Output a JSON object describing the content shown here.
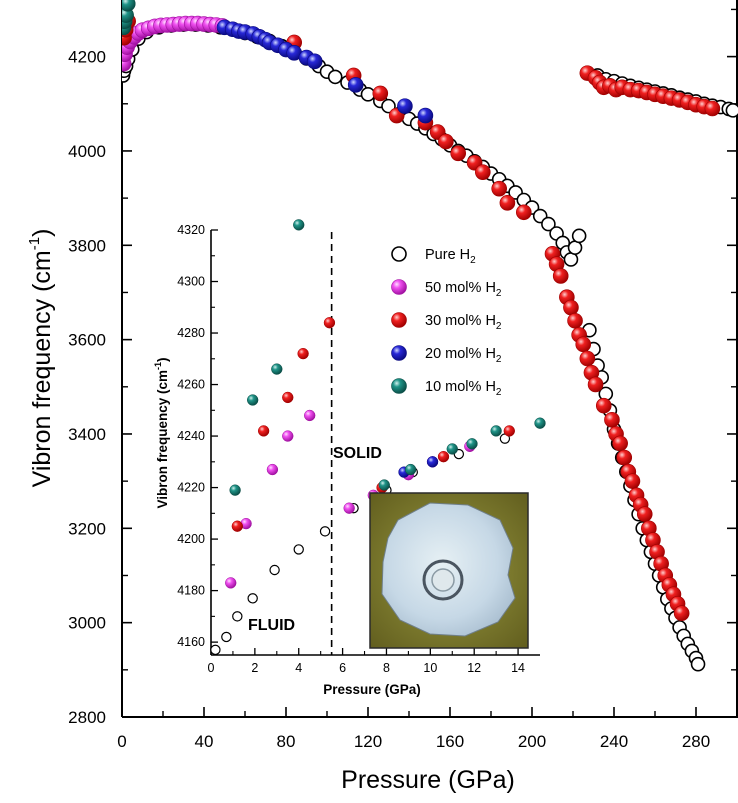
{
  "chart_data": [
    {
      "type": "scatter",
      "title": "",
      "xlabel": "Pressure (GPa)",
      "ylabel": "Vibron frequency (cm-1)",
      "ylabel_main": "Vibron frequency (cm",
      "ylabel_sup": "-1",
      "ylabel_close": ")",
      "xlim": [
        0,
        300
      ],
      "ylim": [
        2800,
        4320
      ],
      "xticks": [
        0,
        40,
        80,
        120,
        160,
        200,
        240,
        280
      ],
      "yticks": [
        2800,
        3000,
        3200,
        3400,
        3600,
        3800,
        4000,
        4200
      ],
      "grid": false,
      "colors": {
        "pure": "#000000",
        "h50": "#ee22ee",
        "h30": "#ee1111",
        "h20": "#1a1acc",
        "h10": "#1a8a80"
      },
      "series": [
        {
          "name": "Pure H2",
          "key": "pure",
          "points": [
            [
              0.5,
              4160
            ],
            [
              1,
              4170
            ],
            [
              2,
              4180
            ],
            [
              3,
              4195
            ],
            [
              5,
              4215
            ],
            [
              8,
              4238
            ],
            [
              12,
              4252
            ],
            [
              18,
              4262
            ],
            [
              24,
              4266
            ],
            [
              30,
              4268
            ],
            [
              36,
              4268
            ],
            [
              42,
              4266
            ],
            [
              48,
              4262
            ],
            [
              54,
              4258
            ],
            [
              60,
              4250
            ],
            [
              66,
              4242
            ],
            [
              72,
              4233
            ],
            [
              78,
              4222
            ],
            [
              84,
              4208
            ],
            [
              90,
              4196
            ],
            [
              96,
              4180
            ],
            [
              100,
              4168
            ],
            [
              104,
              4157
            ],
            [
              110,
              4145
            ],
            [
              116,
              4130
            ],
            [
              120,
              4120
            ],
            [
              126,
              4106
            ],
            [
              130,
              4095
            ],
            [
              136,
              4080
            ],
            [
              140,
              4068
            ],
            [
              144,
              4058
            ],
            [
              148,
              4048
            ],
            [
              152,
              4036
            ],
            [
              156,
              4025
            ],
            [
              160,
              4012
            ],
            [
              164,
              4000
            ],
            [
              168,
              3990
            ],
            [
              172,
              3978
            ],
            [
              176,
              3966
            ],
            [
              180,
              3952
            ],
            [
              184,
              3940
            ],
            [
              188,
              3926
            ],
            [
              192,
              3912
            ],
            [
              196,
              3896
            ],
            [
              200,
              3880
            ],
            [
              204,
              3862
            ],
            [
              208,
              3845
            ],
            [
              212,
              3825
            ],
            [
              215,
              3805
            ],
            [
              217,
              3785
            ],
            [
              219,
              3770
            ],
            [
              221,
              3795
            ],
            [
              223,
              3820
            ],
            [
              228,
              3620
            ],
            [
              230,
              3580
            ],
            [
              232,
              3545
            ],
            [
              234,
              3520
            ],
            [
              236,
              3485
            ],
            [
              238,
              3450
            ],
            [
              240,
              3410
            ],
            [
              242,
              3380
            ],
            [
              244,
              3350
            ],
            [
              246,
              3320
            ],
            [
              248,
              3290
            ],
            [
              250,
              3260
            ],
            [
              252,
              3230
            ],
            [
              254,
              3200
            ],
            [
              256,
              3175
            ],
            [
              258,
              3150
            ],
            [
              260,
              3125
            ],
            [
              262,
              3100
            ],
            [
              264,
              3075
            ],
            [
              266,
              3050
            ],
            [
              268,
              3030
            ],
            [
              270,
              3010
            ],
            [
              272,
              2990
            ],
            [
              274,
              2972
            ],
            [
              276,
              2955
            ],
            [
              278,
              2940
            ],
            [
              280,
              2925
            ],
            [
              281,
              2912
            ],
            [
              232,
              4160
            ],
            [
              236,
              4152
            ],
            [
              240,
              4148
            ],
            [
              244,
              4143
            ],
            [
              248,
              4138
            ],
            [
              252,
              4134
            ],
            [
              256,
              4130
            ],
            [
              260,
              4126
            ],
            [
              264,
              4122
            ],
            [
              268,
              4118
            ],
            [
              272,
              4113
            ],
            [
              276,
              4109
            ],
            [
              280,
              4105
            ],
            [
              284,
              4100
            ],
            [
              288,
              4096
            ],
            [
              292,
              4093
            ],
            [
              296,
              4089
            ],
            [
              298,
              4086
            ]
          ]
        },
        {
          "name": "50 mol% H2",
          "key": "h50",
          "points": [
            [
              0.8,
              4185
            ],
            [
              1.5,
              4205
            ],
            [
              2.5,
              4220
            ],
            [
              4,
              4232
            ],
            [
              6,
              4242
            ],
            [
              8,
              4250
            ],
            [
              10,
              4256
            ],
            [
              13,
              4260
            ],
            [
              16,
              4264
            ],
            [
              19,
              4266
            ],
            [
              22,
              4267
            ],
            [
              25,
              4268
            ],
            [
              28,
              4269
            ],
            [
              31,
              4270
            ],
            [
              34,
              4270
            ],
            [
              37,
              4270
            ],
            [
              40,
              4269
            ],
            [
              43,
              4268
            ],
            [
              46,
              4267
            ],
            [
              49,
              4265
            ]
          ]
        },
        {
          "name": "30 mol% H2",
          "key": "h30",
          "points": [
            [
              1,
              4240
            ],
            [
              1.8,
              4257
            ],
            [
              3,
              4275
            ],
            [
              84,
              4230
            ],
            [
              113,
              4160
            ],
            [
              126,
              4122
            ],
            [
              134,
              4075
            ],
            [
              148,
              4060
            ],
            [
              154,
              4040
            ],
            [
              158,
              4020
            ],
            [
              164,
              3995
            ],
            [
              172,
              3975
            ],
            [
              176,
              3955
            ],
            [
              184,
              3920
            ],
            [
              188,
              3890
            ],
            [
              196,
              3870
            ],
            [
              210,
              3782
            ],
            [
              212,
              3760
            ],
            [
              214,
              3735
            ],
            [
              217,
              3690
            ],
            [
              219,
              3668
            ],
            [
              221,
              3640
            ],
            [
              223,
              3610
            ],
            [
              225,
              3590
            ],
            [
              227,
              3560
            ],
            [
              229,
              3530
            ],
            [
              231,
              3505
            ],
            [
              235,
              3460
            ],
            [
              239,
              3430
            ],
            [
              241,
              3400
            ],
            [
              243,
              3380
            ],
            [
              245,
              3350
            ],
            [
              247,
              3320
            ],
            [
              249,
              3300
            ],
            [
              251,
              3270
            ],
            [
              253,
              3250
            ],
            [
              255,
              3230
            ],
            [
              257,
              3200
            ],
            [
              259,
              3175
            ],
            [
              261,
              3150
            ],
            [
              263,
              3125
            ],
            [
              265,
              3100
            ],
            [
              267,
              3080
            ],
            [
              269,
              3060
            ],
            [
              271,
              3040
            ],
            [
              273,
              3020
            ],
            [
              227,
              4165
            ],
            [
              231,
              4155
            ],
            [
              233,
              4145
            ],
            [
              235,
              4135
            ],
            [
              238,
              4138
            ],
            [
              241,
              4130
            ],
            [
              244,
              4135
            ],
            [
              248,
              4130
            ],
            [
              252,
              4128
            ],
            [
              256,
              4124
            ],
            [
              260,
              4120
            ],
            [
              264,
              4116
            ],
            [
              268,
              4112
            ],
            [
              272,
              4108
            ],
            [
              276,
              4103
            ],
            [
              280,
              4098
            ],
            [
              284,
              4094
            ],
            [
              288,
              4090
            ]
          ]
        },
        {
          "name": "20 mol% H2",
          "key": "h20",
          "points": [
            [
              50,
              4262
            ],
            [
              54,
              4258
            ],
            [
              57,
              4254
            ],
            [
              60,
              4252
            ],
            [
              64,
              4248
            ],
            [
              67,
              4242
            ],
            [
              70,
              4236
            ],
            [
              72,
              4230
            ],
            [
              76,
              4224
            ],
            [
              80,
              4215
            ],
            [
              84,
              4208
            ],
            [
              90,
              4198
            ],
            [
              94,
              4190
            ],
            [
              114,
              4140
            ],
            [
              138,
              4095
            ],
            [
              148,
              4075
            ]
          ]
        },
        {
          "name": "10 mol% H2",
          "key": "h10",
          "points": [
            [
              0.7,
              4262
            ],
            [
              1.3,
              4275
            ],
            [
              2,
              4288
            ],
            [
              2.8,
              4312
            ]
          ]
        }
      ]
    },
    {
      "type": "scatter",
      "title": "",
      "xlabel": "Pressure (GPa)",
      "ylabel": "Vibron frequency (cm-1)",
      "ylabel_main": "Vibron frequency (cm",
      "ylabel_sup": "-1",
      "ylabel_close": ")",
      "xlim": [
        0,
        15
      ],
      "ylim": [
        4155,
        4320
      ],
      "xticks": [
        0,
        2,
        4,
        6,
        8,
        10,
        12,
        14
      ],
      "yticks": [
        4160,
        4180,
        4200,
        4220,
        4240,
        4260,
        4280,
        4300,
        4320
      ],
      "annotations": {
        "fluid": "FLUID",
        "solid": "SOLID"
      },
      "phase_boundary_x": 5.5,
      "legend": [
        {
          "key": "pure",
          "label": "Pure H",
          "sub": "2"
        },
        {
          "key": "h50",
          "label": "50 mol% H",
          "sub": "2"
        },
        {
          "key": "h30",
          "label": "30 mol% H",
          "sub": "2"
        },
        {
          "key": "h20",
          "label": "20 mol% H",
          "sub": "2"
        },
        {
          "key": "h10",
          "label": "10 mol% H",
          "sub": "2"
        }
      ],
      "series": [
        {
          "name": "Pure H2",
          "key": "pure",
          "points": [
            [
              0.2,
              4157
            ],
            [
              0.7,
              4162
            ],
            [
              1.2,
              4170
            ],
            [
              1.9,
              4177
            ],
            [
              2.9,
              4188
            ],
            [
              4,
              4196
            ],
            [
              5.2,
              4203
            ],
            [
              6.5,
              4212
            ],
            [
              8,
              4219
            ],
            [
              9.2,
              4226
            ],
            [
              11.3,
              4233
            ],
            [
              13.4,
              4239
            ]
          ]
        },
        {
          "name": "50 mol% H2",
          "key": "h50",
          "points": [
            [
              0.9,
              4183
            ],
            [
              1.6,
              4206
            ],
            [
              2.8,
              4227
            ],
            [
              3.5,
              4240
            ],
            [
              4.5,
              4248
            ],
            [
              6.3,
              4212
            ],
            [
              7.4,
              4217
            ],
            [
              9,
              4225
            ],
            [
              10.1,
              4230
            ],
            [
              11.8,
              4236
            ]
          ]
        },
        {
          "name": "30 mol% H2",
          "key": "h30",
          "points": [
            [
              1.2,
              4205
            ],
            [
              2.4,
              4242
            ],
            [
              3.5,
              4255
            ],
            [
              4.2,
              4272
            ],
            [
              5.4,
              4284
            ],
            [
              7.8,
              4220
            ],
            [
              10.6,
              4232
            ],
            [
              13.6,
              4242
            ]
          ]
        },
        {
          "name": "20 mol% H2",
          "key": "h20",
          "points": [
            [
              8.8,
              4226
            ],
            [
              10.1,
              4230
            ]
          ]
        },
        {
          "name": "10 mol% H2",
          "key": "h10",
          "points": [
            [
              1.1,
              4219
            ],
            [
              1.9,
              4254
            ],
            [
              3,
              4266
            ],
            [
              4,
              4322
            ],
            [
              7.9,
              4221
            ],
            [
              9.1,
              4227
            ],
            [
              11,
              4235
            ],
            [
              11.9,
              4237
            ],
            [
              13,
              4242
            ],
            [
              15,
              4245
            ]
          ]
        }
      ]
    }
  ]
}
